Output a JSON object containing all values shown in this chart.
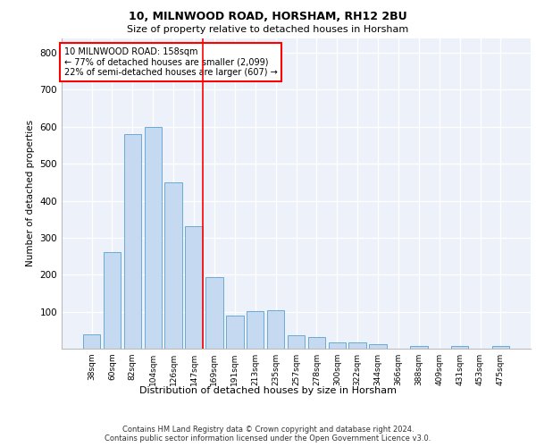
{
  "title_line1": "10, MILNWOOD ROAD, HORSHAM, RH12 2BU",
  "title_line2": "Size of property relative to detached houses in Horsham",
  "xlabel": "Distribution of detached houses by size in Horsham",
  "ylabel": "Number of detached properties",
  "categories": [
    "38sqm",
    "60sqm",
    "82sqm",
    "104sqm",
    "126sqm",
    "147sqm",
    "169sqm",
    "191sqm",
    "213sqm",
    "235sqm",
    "257sqm",
    "278sqm",
    "300sqm",
    "322sqm",
    "344sqm",
    "366sqm",
    "388sqm",
    "409sqm",
    "431sqm",
    "453sqm",
    "475sqm"
  ],
  "values": [
    38,
    262,
    580,
    600,
    450,
    330,
    193,
    90,
    102,
    105,
    37,
    32,
    17,
    17,
    12,
    0,
    7,
    0,
    7,
    0,
    7
  ],
  "bar_color": "#c5d9f0",
  "bar_edge_color": "#6aaad4",
  "vline_color": "red",
  "vline_index": 5,
  "annotation_text": "10 MILNWOOD ROAD: 158sqm\n← 77% of detached houses are smaller (2,099)\n22% of semi-detached houses are larger (607) →",
  "ylim": [
    0,
    840
  ],
  "yticks": [
    0,
    100,
    200,
    300,
    400,
    500,
    600,
    700,
    800
  ],
  "background_color": "#edf2fa",
  "grid_color": "#ffffff",
  "footer_line1": "Contains HM Land Registry data © Crown copyright and database right 2024.",
  "footer_line2": "Contains public sector information licensed under the Open Government Licence v3.0."
}
